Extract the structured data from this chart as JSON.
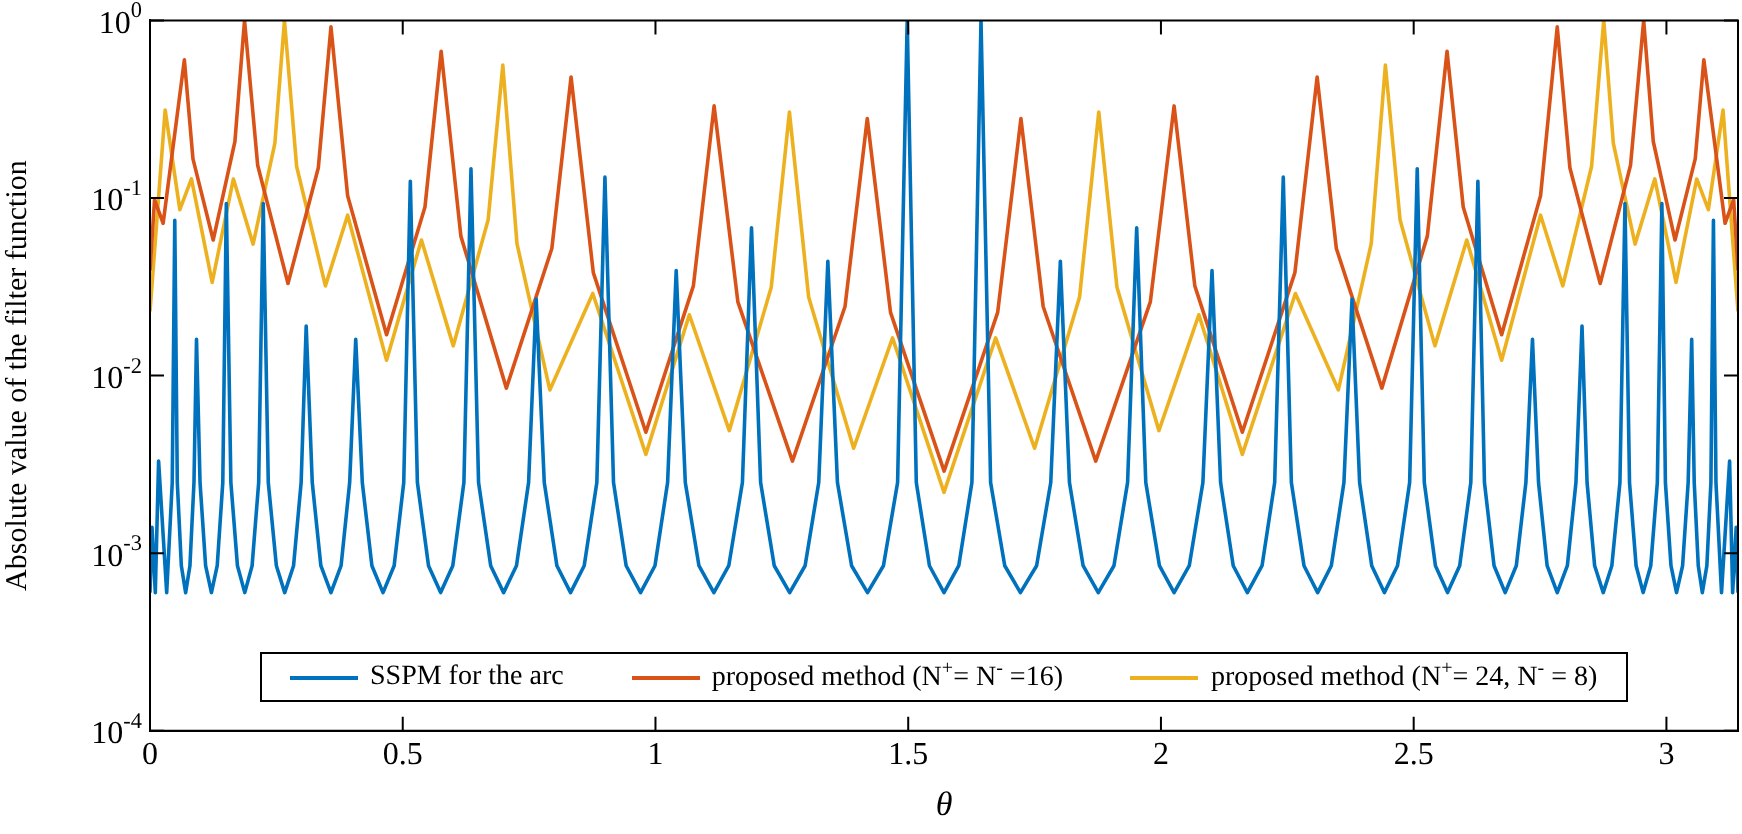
{
  "chart_data": {
    "type": "line",
    "xlabel": "θ",
    "ylabel": "Absolute value of the filter function",
    "log": "y",
    "grid": false,
    "legend": "bottom",
    "marker": "none",
    "line_style": "solid",
    "xlim": [
      0,
      3.1416
    ],
    "xticks": [
      0,
      0.5,
      1,
      1.5,
      2,
      2.5,
      3
    ],
    "ylim": [
      0.0001,
      1
    ],
    "yticks": [
      {
        "value": 0.0001,
        "label": "10$^{-4}$"
      },
      {
        "value": 0.001,
        "label": "10$^{-3}$"
      },
      {
        "value": 0.01,
        "label": "10$^{-2}$"
      },
      {
        "value": 0.1,
        "label": "10$^{-1}$"
      },
      {
        "value": 1,
        "label": "10$^{0}$"
      }
    ],
    "series": [
      {
        "name": "SSPM for the arc",
        "color": "#0072bd",
        "x": [
          0,
          0.004,
          0.0105,
          0.017,
          0.033,
          0.044,
          0.049,
          0.054,
          0.062,
          0.0705,
          0.079,
          0.087,
          0.092,
          0.099,
          0.11,
          0.1215,
          0.133,
          0.144,
          0.151,
          0.16,
          0.173,
          0.1875,
          0.202,
          0.215,
          0.224,
          0.234,
          0.25,
          0.2665,
          0.284,
          0.299,
          0.309,
          0.321,
          0.338,
          0.358,
          0.378,
          0.395,
          0.407,
          0.42,
          0.439,
          0.461,
          0.483,
          0.502,
          0.515,
          0.529,
          0.551,
          0.575,
          0.599,
          0.621,
          0.635,
          0.65,
          0.674,
          0.6995,
          0.725,
          0.749,
          0.764,
          0.78,
          0.805,
          0.832,
          0.859,
          0.884,
          0.9,
          0.917,
          0.942,
          0.9705,
          0.999,
          1.024,
          1.041,
          1.059,
          1.086,
          1.1155,
          1.145,
          1.172,
          1.19,
          1.208,
          1.235,
          1.2655,
          1.296,
          1.323,
          1.341,
          1.36,
          1.388,
          1.4195,
          1.451,
          1.479,
          1.498,
          1.516,
          1.542,
          1.5708,
          1.6,
          1.626,
          1.644,
          1.663,
          1.691,
          1.722,
          1.754,
          1.782,
          1.801,
          1.819,
          1.846,
          1.876,
          1.907,
          1.934,
          1.952,
          1.97,
          1.997,
          2.026,
          2.056,
          2.083,
          2.101,
          2.118,
          2.143,
          2.171,
          2.2,
          2.225,
          2.242,
          2.258,
          2.283,
          2.31,
          2.337,
          2.362,
          2.378,
          2.393,
          2.417,
          2.442,
          2.468,
          2.492,
          2.507,
          2.521,
          2.543,
          2.567,
          2.591,
          2.613,
          2.627,
          2.64,
          2.659,
          2.681,
          2.703,
          2.722,
          2.735,
          2.747,
          2.764,
          2.784,
          2.804,
          2.821,
          2.833,
          2.843,
          2.858,
          2.875,
          2.892,
          2.908,
          2.918,
          2.927,
          2.94,
          2.954,
          2.969,
          2.982,
          2.991,
          2.998,
          3.009,
          3.02,
          3.032,
          3.043,
          3.05,
          3.055,
          3.063,
          3.071,
          3.08,
          3.088,
          3.093,
          3.098,
          3.109,
          3.125,
          3.131,
          3.138,
          3.1416
        ],
        "values": [
          0.0006,
          0.0014,
          0.0006,
          0.0033,
          0.0006,
          0.0025,
          0.075,
          0.0025,
          0.00085,
          0.0006,
          0.00085,
          0.0025,
          0.016,
          0.0025,
          0.00085,
          0.0006,
          0.00085,
          0.0025,
          0.093,
          0.0025,
          0.00085,
          0.0006,
          0.00085,
          0.0025,
          0.093,
          0.0025,
          0.00085,
          0.0006,
          0.00085,
          0.0025,
          0.019,
          0.0025,
          0.00085,
          0.0006,
          0.00085,
          0.0025,
          0.016,
          0.0025,
          0.00085,
          0.0006,
          0.00085,
          0.0025,
          0.124,
          0.0025,
          0.00085,
          0.0006,
          0.00085,
          0.0025,
          0.146,
          0.0025,
          0.00085,
          0.0006,
          0.00085,
          0.0025,
          0.027,
          0.0025,
          0.00085,
          0.0006,
          0.00085,
          0.0025,
          0.131,
          0.0025,
          0.00085,
          0.0006,
          0.00085,
          0.0025,
          0.039,
          0.0025,
          0.00085,
          0.0006,
          0.00085,
          0.0025,
          0.068,
          0.0025,
          0.00085,
          0.0006,
          0.00085,
          0.0025,
          0.044,
          0.0025,
          0.00085,
          0.0006,
          0.00085,
          0.0025,
          1,
          0.0025,
          0.00085,
          0.0006,
          0.00085,
          0.0025,
          1,
          0.0025,
          0.00085,
          0.0006,
          0.00085,
          0.0025,
          0.044,
          0.0025,
          0.00085,
          0.0006,
          0.00085,
          0.0025,
          0.068,
          0.0025,
          0.00085,
          0.0006,
          0.00085,
          0.0025,
          0.039,
          0.0025,
          0.00085,
          0.0006,
          0.00085,
          0.0025,
          0.131,
          0.0025,
          0.00085,
          0.0006,
          0.00085,
          0.0025,
          0.027,
          0.0025,
          0.00085,
          0.0006,
          0.00085,
          0.0025,
          0.146,
          0.0025,
          0.00085,
          0.0006,
          0.00085,
          0.0025,
          0.124,
          0.0025,
          0.00085,
          0.0006,
          0.00085,
          0.0025,
          0.016,
          0.0025,
          0.00085,
          0.0006,
          0.00085,
          0.0025,
          0.019,
          0.0025,
          0.00085,
          0.0006,
          0.00085,
          0.0025,
          0.093,
          0.0025,
          0.00085,
          0.0006,
          0.00085,
          0.0025,
          0.093,
          0.0025,
          0.00085,
          0.0006,
          0.00085,
          0.0025,
          0.016,
          0.0025,
          0.00085,
          0.0006,
          0.00085,
          0.0025,
          0.075,
          0.0025,
          0.0006,
          0.0033,
          0.0006,
          0.0014,
          0.0006
        ]
      },
      {
        "name": "proposed method (N$^{+}$= N$^{-}$ =16)",
        "color": "#d95319",
        "x": [
          0,
          0.009,
          0.026,
          0.068,
          0.085,
          0.125,
          0.168,
          0.187,
          0.213,
          0.273,
          0.333,
          0.358,
          0.391,
          0.468,
          0.544,
          0.576,
          0.615,
          0.705,
          0.795,
          0.833,
          0.877,
          0.981,
          1.075,
          1.116,
          1.163,
          1.271,
          1.375,
          1.419,
          1.465,
          1.571,
          1.677,
          1.723,
          1.767,
          1.871,
          1.979,
          2.026,
          2.067,
          2.161,
          2.265,
          2.309,
          2.347,
          2.437,
          2.527,
          2.566,
          2.598,
          2.674,
          2.751,
          2.784,
          2.809,
          2.869,
          2.929,
          2.955,
          2.974,
          3.017,
          3.057,
          3.074,
          3.116,
          3.133,
          3.1416
        ],
        "values": [
          0.039,
          0.098,
          0.072,
          0.6,
          0.166,
          0.058,
          0.208,
          1,
          0.153,
          0.033,
          0.148,
          0.92,
          0.103,
          0.017,
          0.089,
          0.67,
          0.061,
          0.0085,
          0.052,
          0.48,
          0.038,
          0.0048,
          0.032,
          0.33,
          0.026,
          0.0033,
          0.0245,
          0.28,
          0.0227,
          0.0029,
          0.0227,
          0.28,
          0.0245,
          0.0033,
          0.026,
          0.33,
          0.032,
          0.0048,
          0.038,
          0.48,
          0.052,
          0.0085,
          0.061,
          0.67,
          0.089,
          0.017,
          0.103,
          0.92,
          0.148,
          0.033,
          0.153,
          1,
          0.208,
          0.058,
          0.166,
          0.6,
          0.072,
          0.098,
          0.039
        ]
      },
      {
        "name": "proposed method (N$^{+}$= 24, N$^{-}$ = 8)",
        "color": "#edb120",
        "x": [
          0,
          0.03,
          0.059,
          0.082,
          0.123,
          0.165,
          0.204,
          0.247,
          0.266,
          0.29,
          0.347,
          0.391,
          0.468,
          0.537,
          0.6,
          0.669,
          0.698,
          0.726,
          0.791,
          0.876,
          0.981,
          1.067,
          1.146,
          1.229,
          1.265,
          1.303,
          1.392,
          1.469,
          1.5708,
          1.673,
          1.75,
          1.839,
          1.877,
          1.913,
          1.996,
          2.075,
          2.161,
          2.266,
          2.351,
          2.416,
          2.444,
          2.473,
          2.542,
          2.605,
          2.674,
          2.751,
          2.795,
          2.852,
          2.876,
          2.895,
          2.938,
          2.977,
          3.019,
          3.06,
          3.083,
          3.112,
          3.1416
        ],
        "values": [
          0.023,
          0.313,
          0.086,
          0.128,
          0.0335,
          0.128,
          0.055,
          0.203,
          1,
          0.151,
          0.032,
          0.08,
          0.0122,
          0.058,
          0.0147,
          0.0755,
          0.56,
          0.0553,
          0.0083,
          0.029,
          0.0036,
          0.022,
          0.0049,
          0.0314,
          0.305,
          0.0277,
          0.0039,
          0.0163,
          0.0022,
          0.0163,
          0.0039,
          0.0277,
          0.305,
          0.0314,
          0.0049,
          0.022,
          0.0036,
          0.029,
          0.0083,
          0.0553,
          0.56,
          0.0755,
          0.0147,
          0.058,
          0.0122,
          0.08,
          0.032,
          0.151,
          1,
          0.203,
          0.055,
          0.128,
          0.0335,
          0.128,
          0.086,
          0.313,
          0.023
        ]
      }
    ]
  }
}
